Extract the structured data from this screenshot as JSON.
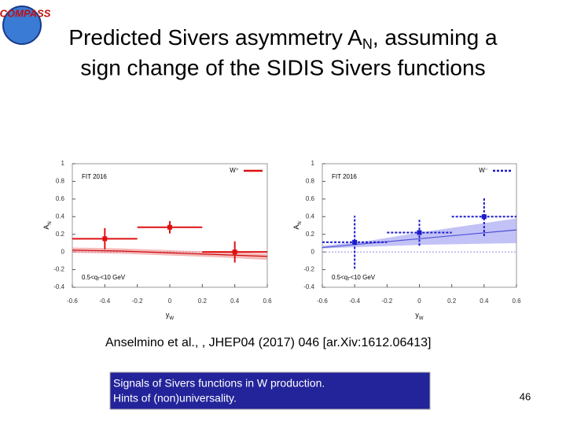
{
  "logo": "COMPASS",
  "title": {
    "line1_a": "Predicted Sivers asymmetry A",
    "line1_sub": "N",
    "line1_b": ", assuming a",
    "line2": "sign change of the SIDIS Sivers functions"
  },
  "citation": "Anselmino et al., , JHEP04 (2017) 046 [ar.Xiv:1612.06413]",
  "box": {
    "line1": "Signals of Sivers functions in W production.",
    "line2": "Hints of (non)universality."
  },
  "page_number": "46",
  "chart_data": [
    {
      "type": "errorbar",
      "annotation": "FIT 2016",
      "cut_a": "0.5<q",
      "cut_sub": "T",
      "cut_b": "<10 GeV",
      "xlabel": "y",
      "xlabel_sub": "W",
      "ylabel": "A",
      "ylabel_sub": "N",
      "xlim": [
        -0.6,
        0.6
      ],
      "ylim": [
        -0.4,
        1
      ],
      "xticks": [
        -0.6,
        -0.4,
        -0.2,
        0,
        0.2,
        0.4,
        0.6
      ],
      "yticks": [
        -0.4,
        -0.2,
        0,
        0.2,
        0.4,
        0.6,
        0.8,
        1
      ],
      "series": [
        {
          "name": "W⁺",
          "color": "#dd1111",
          "dashed": false,
          "x": [
            -0.4,
            0,
            0.4
          ],
          "values": [
            0.15,
            0.28,
            0.0
          ],
          "xerr": [
            0.2,
            0.2,
            0.2
          ],
          "yerr": [
            0.12,
            0.07,
            0.12
          ]
        }
      ],
      "band": {
        "color": "#f08a8a",
        "line_color": "#cc1111",
        "x": [
          -0.6,
          -0.3,
          0,
          0.3,
          0.6
        ],
        "center": [
          0.02,
          0.01,
          -0.01,
          -0.03,
          -0.05
        ],
        "lower": [
          -0.01,
          -0.02,
          -0.04,
          -0.06,
          -0.09
        ],
        "upper": [
          0.05,
          0.04,
          0.02,
          0.0,
          -0.02
        ]
      }
    },
    {
      "type": "errorbar",
      "annotation": "FIT 2016",
      "cut_a": "0.5<q",
      "cut_sub": "T",
      "cut_b": "<10 GeV",
      "xlabel": "y",
      "xlabel_sub": "W",
      "ylabel": "A",
      "ylabel_sub": "N",
      "xlim": [
        -0.6,
        0.6
      ],
      "ylim": [
        -0.4,
        1
      ],
      "xticks": [
        -0.6,
        -0.4,
        -0.2,
        0,
        0.2,
        0.4,
        0.6
      ],
      "yticks": [
        -0.4,
        -0.2,
        0,
        0.2,
        0.4,
        0.6,
        0.8,
        1
      ],
      "series": [
        {
          "name": "W⁻",
          "color": "#1a1acc",
          "dashed": true,
          "x": [
            -0.4,
            0,
            0.4
          ],
          "values": [
            0.11,
            0.22,
            0.4
          ],
          "xerr": [
            0.2,
            0.2,
            0.2
          ],
          "yerr": [
            0.3,
            0.15,
            0.22
          ]
        }
      ],
      "band": {
        "color": "#9a9af0",
        "line_color": "#5050d8",
        "x": [
          -0.6,
          -0.3,
          0,
          0.3,
          0.6
        ],
        "center": [
          0.05,
          0.1,
          0.15,
          0.2,
          0.25
        ],
        "lower": [
          0.04,
          0.06,
          0.08,
          0.09,
          0.1
        ],
        "upper": [
          0.07,
          0.13,
          0.22,
          0.3,
          0.38
        ]
      }
    }
  ]
}
